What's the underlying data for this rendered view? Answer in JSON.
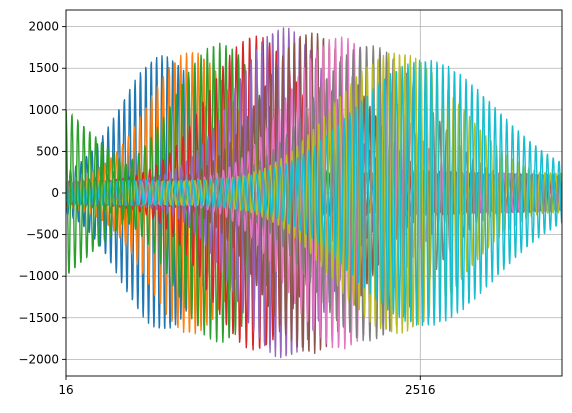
{
  "chart_data": {
    "type": "line",
    "title": "",
    "xlabel": "",
    "ylabel": "",
    "xlim": [
      16,
      3516
    ],
    "ylim": [
      -2200,
      2200
    ],
    "x_ticks": [
      16,
      2516
    ],
    "x_tick_labels": [
      "16",
      "2516"
    ],
    "y_ticks": [
      -2000,
      -1500,
      -1000,
      -500,
      0,
      500,
      1000,
      1500,
      2000
    ],
    "y_tick_labels": [
      "−2000",
      "−1500",
      "−1000",
      "−500",
      "0",
      "500",
      "1000",
      "1500",
      "2000"
    ],
    "grid": true,
    "legend": "none",
    "series_count": 10,
    "series_colors": [
      "#1f77b4",
      "#ff7f0e",
      "#2ca02c",
      "#d62728",
      "#9467bd",
      "#8c564b",
      "#e377c2",
      "#7f7f7f",
      "#bcbd22",
      "#17becf"
    ],
    "series_envelopes": [
      {
        "peak_x": 700,
        "peak_amplitude": 1500,
        "spread": 420,
        "baseline": 150
      },
      {
        "peak_x": 900,
        "peak_amplitude": 1550,
        "spread": 430,
        "baseline": 150
      },
      {
        "peak_x": 1100,
        "peak_amplitude": 1650,
        "spread": 450,
        "baseline": 150
      },
      {
        "peak_x": 1350,
        "peak_amplitude": 1750,
        "spread": 470,
        "baseline": 140
      },
      {
        "peak_x": 1550,
        "peak_amplitude": 1850,
        "spread": 480,
        "baseline": 140
      },
      {
        "peak_x": 1750,
        "peak_amplitude": 1800,
        "spread": 500,
        "baseline": 130
      },
      {
        "peak_x": 1950,
        "peak_amplitude": 1750,
        "spread": 520,
        "baseline": 130
      },
      {
        "peak_x": 2150,
        "peak_amplitude": 1650,
        "spread": 560,
        "baseline": 130
      },
      {
        "peak_x": 2350,
        "peak_amplitude": 1550,
        "spread": 620,
        "baseline": 140
      },
      {
        "peak_x": 2550,
        "peak_amplitude": 1450,
        "spread": 700,
        "baseline": 150
      }
    ],
    "early_oscillation": {
      "series_color": "#2ca02c",
      "x_start": 16,
      "x_end": 500,
      "amplitude_start": 1000,
      "amplitude_end": 250
    }
  }
}
